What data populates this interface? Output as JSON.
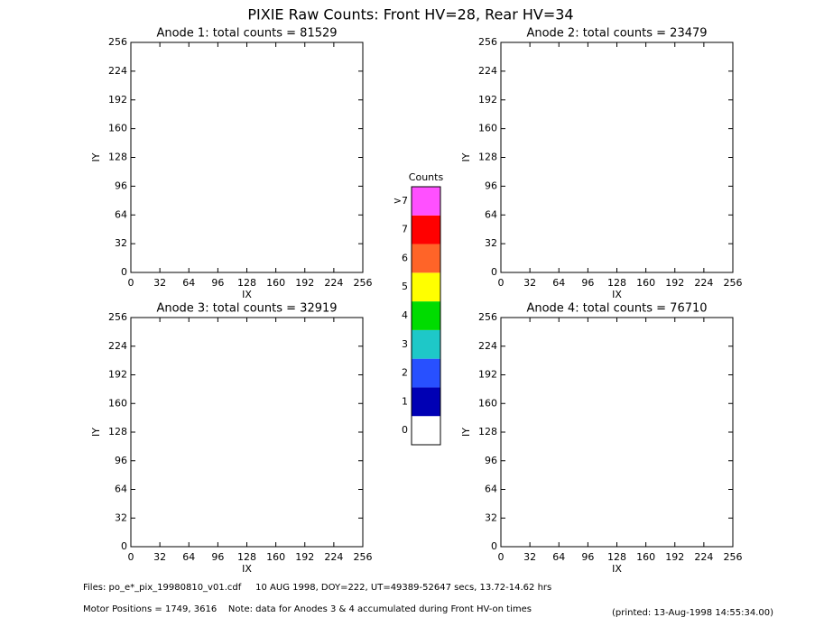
{
  "title": "PIXIE Raw Counts:  Front HV=28, Rear HV=34",
  "chart_data": [
    {
      "type": "heatmap",
      "title": "Anode 1: total counts = 81529",
      "xlabel": "IX",
      "ylabel": "IY",
      "xlim": [
        0,
        256
      ],
      "ylim": [
        0,
        256
      ],
      "xticks": [
        0,
        32,
        64,
        96,
        128,
        160,
        192,
        224,
        256
      ],
      "yticks": [
        0,
        32,
        64,
        96,
        128,
        160,
        192,
        224,
        256
      ]
    },
    {
      "type": "heatmap",
      "title": "Anode 2: total counts = 23479",
      "xlabel": "IX",
      "ylabel": "IY",
      "xlim": [
        0,
        256
      ],
      "ylim": [
        0,
        256
      ],
      "xticks": [
        0,
        32,
        64,
        96,
        128,
        160,
        192,
        224,
        256
      ],
      "yticks": [
        0,
        32,
        64,
        96,
        128,
        160,
        192,
        224,
        256
      ]
    },
    {
      "type": "heatmap",
      "title": "Anode 3: total counts = 32919",
      "xlabel": "IX",
      "ylabel": "IY",
      "xlim": [
        0,
        256
      ],
      "ylim": [
        0,
        256
      ],
      "xticks": [
        0,
        32,
        64,
        96,
        128,
        160,
        192,
        224,
        256
      ],
      "yticks": [
        0,
        32,
        64,
        96,
        128,
        160,
        192,
        224,
        256
      ]
    },
    {
      "type": "heatmap",
      "title": "Anode 4: total counts = 76710",
      "xlabel": "IX",
      "ylabel": "IY",
      "xlim": [
        0,
        256
      ],
      "ylim": [
        0,
        256
      ],
      "xticks": [
        0,
        32,
        64,
        96,
        128,
        160,
        192,
        224,
        256
      ],
      "yticks": [
        0,
        32,
        64,
        96,
        128,
        160,
        192,
        224,
        256
      ]
    }
  ],
  "colorbar": {
    "title": "Counts",
    "labels": [
      "0",
      "1",
      "2",
      "3",
      "4",
      "5",
      "6",
      "7",
      ">7"
    ],
    "colors": [
      "#ffffff",
      "#0000b4",
      "#2850ff",
      "#1ec8c8",
      "#00dc00",
      "#ffff00",
      "#ff6428",
      "#ff0000",
      "#ff50ff"
    ]
  },
  "footer": {
    "files": "Files: po_e*_pix_19980810_v01.cdf     10 AUG 1998, DOY=222, UT=49389-52647 secs, 13.72-14.62 hrs",
    "motor": "Motor Positions = 1749, 3616    Note: data for Anodes 3 & 4 accumulated during Front HV-on times",
    "printed": "(printed: 13-Aug-1998 14:55:34.00)"
  }
}
